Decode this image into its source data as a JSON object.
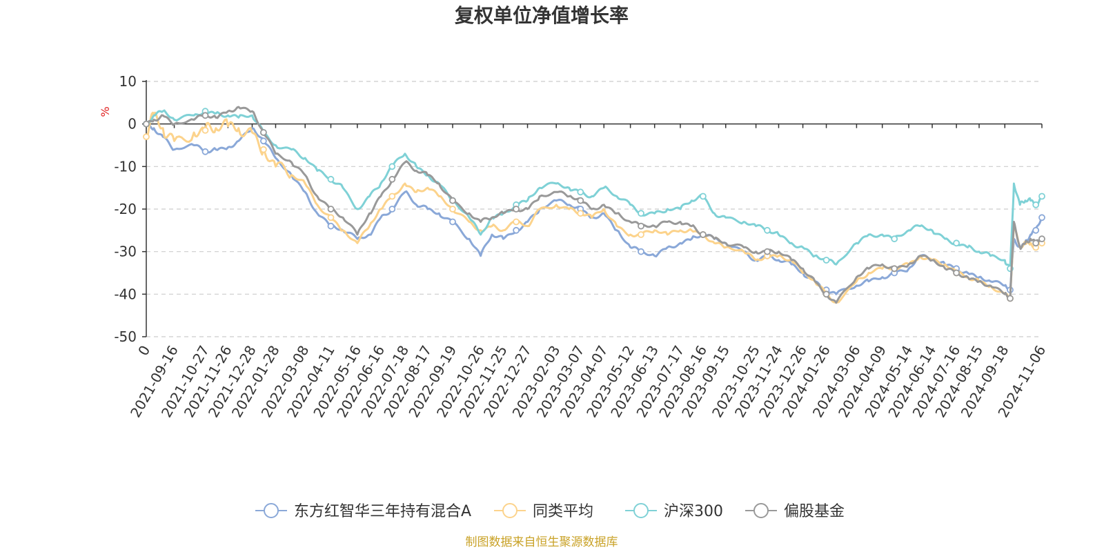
{
  "chart_data": {
    "type": "line",
    "title": "复权单位净值增长率",
    "ylabel": "%",
    "xlabel": "",
    "ylim": [
      -50,
      10
    ],
    "yticks": [
      10,
      0,
      -10,
      -20,
      -30,
      -40,
      -50
    ],
    "grid": true,
    "legend_position": "bottom",
    "source_note": "制图数据来自恒生聚源数据库",
    "x_tick_labels": [
      "0",
      "2021-09-16",
      "2021-10-27",
      "2021-11-26",
      "2021-12-28",
      "2022-01-28",
      "2022-03-08",
      "2022-04-11",
      "2022-05-16",
      "2022-06-16",
      "2022-07-18",
      "2022-08-17",
      "2022-09-19",
      "2022-10-26",
      "2022-11-25",
      "2022-12-27",
      "2023-02-03",
      "2023-03-07",
      "2023-04-07",
      "2023-05-12",
      "2023-06-13",
      "2023-07-17",
      "2023-08-16",
      "2023-09-15",
      "2023-10-25",
      "2023-11-24",
      "2023-12-26",
      "2024-01-26",
      "2024-03-06",
      "2024-04-09",
      "2024-05-14",
      "2024-06-14",
      "2024-07-16",
      "2024-08-15",
      "2024-09-18",
      "2024-11-06"
    ],
    "x": [
      "2021-08-10",
      "2021-08-20",
      "2021-09-01",
      "2021-09-16",
      "2021-10-12",
      "2021-10-27",
      "2021-11-10",
      "2021-11-26",
      "2021-12-10",
      "2021-12-28",
      "2022-01-12",
      "2022-01-28",
      "2022-02-18",
      "2022-03-08",
      "2022-03-24",
      "2022-04-11",
      "2022-04-27",
      "2022-05-16",
      "2022-06-01",
      "2022-06-16",
      "2022-07-01",
      "2022-07-18",
      "2022-08-02",
      "2022-08-17",
      "2022-09-01",
      "2022-09-19",
      "2022-10-11",
      "2022-10-26",
      "2022-11-10",
      "2022-11-25",
      "2022-12-12",
      "2022-12-27",
      "2023-01-12",
      "2023-02-03",
      "2023-02-20",
      "2023-03-07",
      "2023-03-22",
      "2023-04-07",
      "2023-04-24",
      "2023-05-12",
      "2023-05-26",
      "2023-06-13",
      "2023-06-30",
      "2023-07-17",
      "2023-08-01",
      "2023-08-16",
      "2023-08-31",
      "2023-09-15",
      "2023-10-09",
      "2023-10-25",
      "2023-11-09",
      "2023-11-24",
      "2023-12-11",
      "2023-12-26",
      "2024-01-11",
      "2024-01-26",
      "2024-02-08",
      "2024-03-06",
      "2024-03-22",
      "2024-04-09",
      "2024-04-25",
      "2024-05-14",
      "2024-05-29",
      "2024-06-14",
      "2024-07-01",
      "2024-07-16",
      "2024-07-31",
      "2024-08-15",
      "2024-08-30",
      "2024-09-18",
      "2024-09-25",
      "2024-09-30",
      "2024-10-08",
      "2024-10-15",
      "2024-10-22",
      "2024-10-29",
      "2024-11-06"
    ],
    "series": [
      {
        "name": "东方红智华三年持有混合A",
        "color": "#8aa8d8",
        "values": [
          0,
          -1,
          -3,
          -6,
          -5,
          -6.5,
          -6,
          -5.5,
          -4,
          -1,
          -4,
          -8,
          -12,
          -16,
          -21,
          -24,
          -25,
          -27,
          -26,
          -22,
          -20,
          -16,
          -19,
          -20,
          -21,
          -23,
          -27,
          -31,
          -26,
          -27,
          -25,
          -23,
          -20,
          -18,
          -19,
          -20,
          -22,
          -21,
          -25,
          -29,
          -30,
          -31,
          -29,
          -28,
          -27,
          -26,
          -27,
          -28,
          -30,
          -32,
          -31,
          -32,
          -33,
          -35,
          -37,
          -39,
          -40,
          -38,
          -37,
          -36,
          -35,
          -34,
          -31,
          -32,
          -33,
          -34,
          -35,
          -36,
          -37,
          -38,
          -39,
          -27,
          -29,
          -28,
          -26,
          -25,
          -22
        ]
      },
      {
        "name": "同类平均",
        "color": "#fcd38c",
        "values": [
          -3,
          2,
          -1,
          -4,
          -2,
          -1.5,
          -1,
          -0.5,
          -1,
          -2,
          -6,
          -10,
          -12,
          -14,
          -19,
          -22,
          -25,
          -28,
          -24,
          -20,
          -17,
          -14,
          -16,
          -15,
          -17,
          -20,
          -23,
          -25,
          -24,
          -25,
          -23,
          -24,
          -20,
          -19,
          -20,
          -21,
          -22,
          -20,
          -24,
          -26,
          -26,
          -25,
          -26,
          -25,
          -25,
          -26,
          -28,
          -29,
          -30,
          -32,
          -31,
          -31,
          -32,
          -35,
          -37,
          -40,
          -42,
          -37,
          -35,
          -34,
          -34,
          -33,
          -31,
          -32,
          -33,
          -35,
          -36,
          -37,
          -38,
          -40,
          -41,
          -24,
          -29,
          -28,
          -28,
          -29,
          -28
        ]
      },
      {
        "name": "沪深300",
        "color": "#7fd1d6",
        "values": [
          0,
          2,
          3,
          1,
          2,
          3,
          2.5,
          2,
          1.5,
          2,
          -2,
          -5,
          -6,
          -8,
          -11,
          -13,
          -15,
          -20,
          -17,
          -14,
          -10,
          -7,
          -10,
          -12,
          -14,
          -18,
          -22,
          -26,
          -22,
          -21,
          -19,
          -18,
          -15,
          -14,
          -15,
          -16,
          -17,
          -15,
          -17,
          -19,
          -21,
          -21,
          -20,
          -20,
          -18,
          -17,
          -21,
          -22,
          -23,
          -24,
          -25,
          -26,
          -28,
          -29,
          -31,
          -32,
          -33,
          -28,
          -26,
          -26,
          -27,
          -25,
          -24,
          -25,
          -27,
          -28,
          -29,
          -30,
          -31,
          -32,
          -34,
          -14,
          -19,
          -18,
          -18,
          -19,
          -17
        ]
      },
      {
        "name": "偏股基金",
        "color": "#999999",
        "values": [
          0,
          1,
          2,
          0,
          1,
          2,
          1.5,
          3,
          4,
          3,
          -2,
          -7,
          -9,
          -12,
          -17,
          -20,
          -22,
          -26,
          -21,
          -17,
          -13,
          -9,
          -11,
          -12,
          -14,
          -18,
          -21,
          -23,
          -22,
          -21,
          -20,
          -20,
          -17,
          -16,
          -17,
          -18,
          -20,
          -19,
          -21,
          -23,
          -24,
          -24,
          -23,
          -23,
          -24,
          -26,
          -27,
          -28,
          -29,
          -30,
          -30,
          -30,
          -32,
          -34,
          -37,
          -40,
          -42,
          -36,
          -34,
          -33,
          -34,
          -33,
          -31,
          -32,
          -34,
          -35,
          -36,
          -37,
          -38,
          -40,
          -41,
          -23,
          -29,
          -28,
          -27,
          -28,
          -27
        ]
      }
    ]
  }
}
